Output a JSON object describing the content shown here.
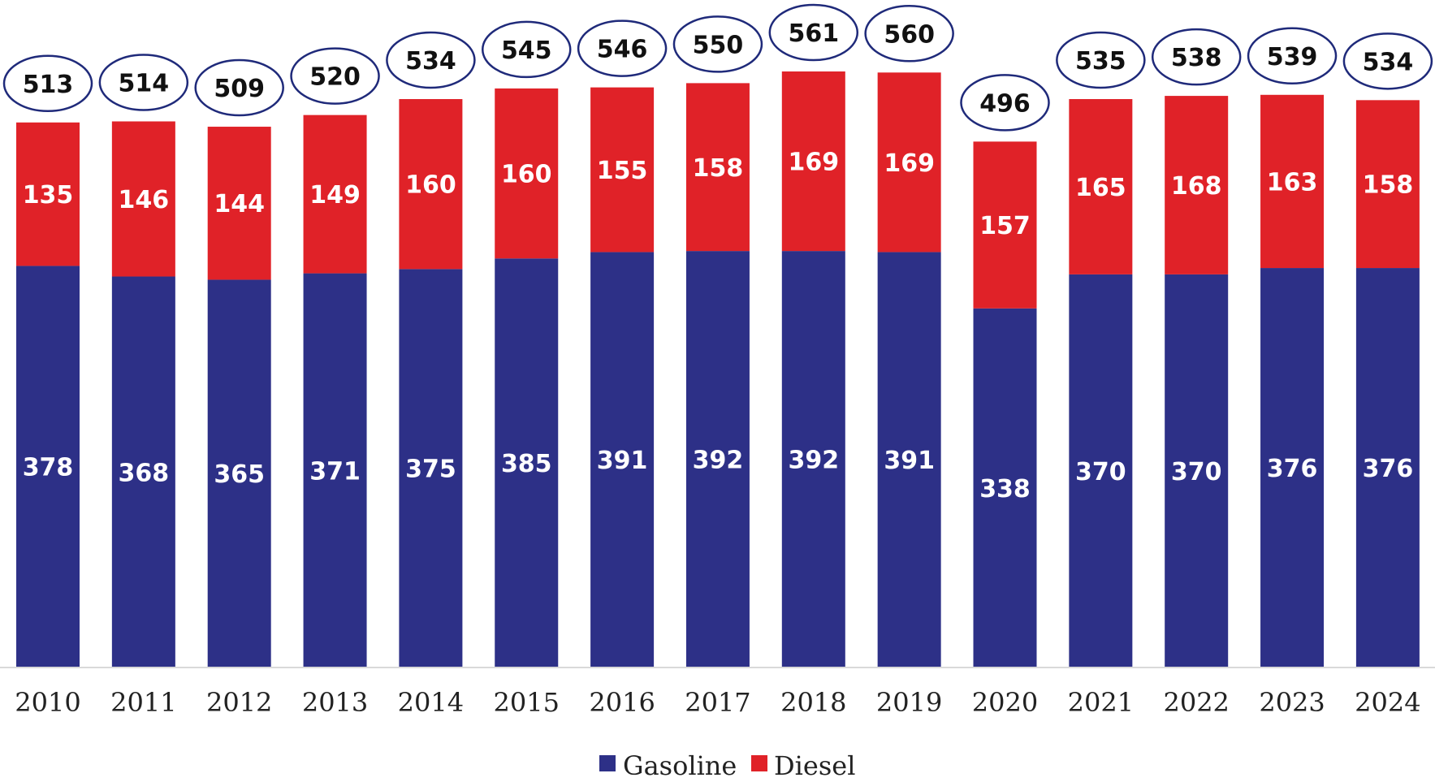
{
  "chart_data": {
    "type": "bar",
    "stacked": true,
    "title": "",
    "xlabel": "",
    "ylabel": "",
    "categories": [
      "2010",
      "2011",
      "2012",
      "2013",
      "2014",
      "2015",
      "2016",
      "2017",
      "2018",
      "2019",
      "2020",
      "2021",
      "2022",
      "2023",
      "2024"
    ],
    "series": [
      {
        "name": "Gasoline",
        "color": "#2d3087",
        "values": [
          378,
          368,
          365,
          371,
          375,
          385,
          391,
          392,
          392,
          391,
          338,
          370,
          370,
          376,
          376
        ]
      },
      {
        "name": "Diesel",
        "color": "#e02228",
        "values": [
          135,
          146,
          144,
          149,
          160,
          160,
          155,
          158,
          169,
          169,
          157,
          165,
          168,
          163,
          158
        ]
      }
    ],
    "totals": [
      513,
      514,
      509,
      520,
      534,
      545,
      546,
      550,
      561,
      560,
      496,
      535,
      538,
      539,
      534
    ],
    "ylim": [
      0,
      561
    ],
    "grid": false,
    "legend": "bottom-center",
    "total_marker_color": "#1f2a7a"
  }
}
